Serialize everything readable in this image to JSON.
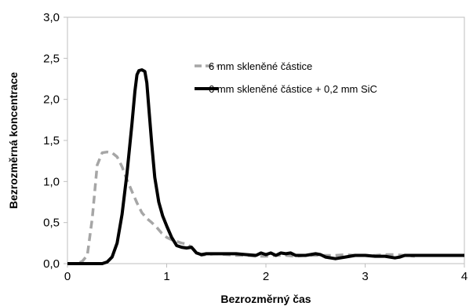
{
  "chart_data": {
    "type": "line",
    "xlabel": "Bezrozměrný čas",
    "ylabel": "Bezrozměrná koncentrace",
    "xlim": [
      0,
      4
    ],
    "ylim": [
      0,
      3
    ],
    "x_ticks": [
      0,
      1,
      2,
      3,
      4
    ],
    "x_tick_labels": [
      "0",
      "1",
      "2",
      "3",
      "4"
    ],
    "y_ticks": [
      0,
      0.5,
      1,
      1.5,
      2,
      2.5,
      3
    ],
    "y_tick_labels": [
      "0,0",
      "0,5",
      "1,0",
      "1,5",
      "2,0",
      "2,5",
      "3,0"
    ],
    "grid": false,
    "legend_position": "top-right",
    "series": [
      {
        "name": "6 mm skleněné částice",
        "color": "#a6a6a6",
        "dash": "dashed",
        "points": [
          [
            0.0,
            0.0
          ],
          [
            0.1,
            0.0
          ],
          [
            0.15,
            0.03
          ],
          [
            0.2,
            0.1
          ],
          [
            0.25,
            0.55
          ],
          [
            0.3,
            1.2
          ],
          [
            0.35,
            1.35
          ],
          [
            0.4,
            1.36
          ],
          [
            0.45,
            1.35
          ],
          [
            0.5,
            1.3
          ],
          [
            0.55,
            1.18
          ],
          [
            0.6,
            1.02
          ],
          [
            0.65,
            0.88
          ],
          [
            0.7,
            0.74
          ],
          [
            0.75,
            0.62
          ],
          [
            0.8,
            0.55
          ],
          [
            0.85,
            0.5
          ],
          [
            0.9,
            0.44
          ],
          [
            0.95,
            0.37
          ],
          [
            1.0,
            0.32
          ],
          [
            1.05,
            0.29
          ],
          [
            1.1,
            0.27
          ],
          [
            1.15,
            0.25
          ],
          [
            1.2,
            0.24
          ],
          [
            1.25,
            0.2
          ],
          [
            1.3,
            0.14
          ],
          [
            1.35,
            0.1
          ],
          [
            1.4,
            0.11
          ],
          [
            1.5,
            0.12
          ],
          [
            1.6,
            0.11
          ],
          [
            1.7,
            0.1
          ],
          [
            1.8,
            0.1
          ],
          [
            1.9,
            0.09
          ],
          [
            2.0,
            0.09
          ],
          [
            2.1,
            0.1
          ],
          [
            2.2,
            0.1
          ],
          [
            2.3,
            0.09
          ],
          [
            2.4,
            0.1
          ],
          [
            2.5,
            0.1
          ],
          [
            2.6,
            0.1
          ],
          [
            2.7,
            0.1
          ],
          [
            2.8,
            0.11
          ],
          [
            2.9,
            0.1
          ],
          [
            3.0,
            0.1
          ],
          [
            3.1,
            0.1
          ],
          [
            3.2,
            0.11
          ],
          [
            3.3,
            0.11
          ],
          [
            3.4,
            0.1
          ],
          [
            3.5,
            0.09
          ]
        ]
      },
      {
        "name": "6 mm skleněné částice + 0,2 mm SiC",
        "color": "#000000",
        "dash": "solid",
        "points": [
          [
            0.0,
            0.0
          ],
          [
            0.2,
            0.0
          ],
          [
            0.35,
            0.0
          ],
          [
            0.4,
            0.02
          ],
          [
            0.45,
            0.08
          ],
          [
            0.5,
            0.25
          ],
          [
            0.55,
            0.6
          ],
          [
            0.6,
            1.1
          ],
          [
            0.65,
            1.7
          ],
          [
            0.68,
            2.1
          ],
          [
            0.7,
            2.3
          ],
          [
            0.72,
            2.35
          ],
          [
            0.75,
            2.36
          ],
          [
            0.78,
            2.34
          ],
          [
            0.8,
            2.2
          ],
          [
            0.82,
            1.9
          ],
          [
            0.85,
            1.45
          ],
          [
            0.88,
            1.05
          ],
          [
            0.92,
            0.75
          ],
          [
            0.96,
            0.58
          ],
          [
            1.0,
            0.46
          ],
          [
            1.05,
            0.32
          ],
          [
            1.1,
            0.22
          ],
          [
            1.15,
            0.2
          ],
          [
            1.2,
            0.19
          ],
          [
            1.25,
            0.2
          ],
          [
            1.3,
            0.13
          ],
          [
            1.35,
            0.11
          ],
          [
            1.4,
            0.12
          ],
          [
            1.5,
            0.12
          ],
          [
            1.6,
            0.12
          ],
          [
            1.7,
            0.12
          ],
          [
            1.8,
            0.11
          ],
          [
            1.9,
            0.1
          ],
          [
            1.95,
            0.13
          ],
          [
            2.0,
            0.11
          ],
          [
            2.05,
            0.13
          ],
          [
            2.1,
            0.1
          ],
          [
            2.15,
            0.13
          ],
          [
            2.2,
            0.12
          ],
          [
            2.25,
            0.13
          ],
          [
            2.3,
            0.1
          ],
          [
            2.4,
            0.1
          ],
          [
            2.5,
            0.12
          ],
          [
            2.55,
            0.11
          ],
          [
            2.6,
            0.08
          ],
          [
            2.7,
            0.06
          ],
          [
            2.8,
            0.08
          ],
          [
            2.9,
            0.1
          ],
          [
            3.0,
            0.1
          ],
          [
            3.1,
            0.09
          ],
          [
            3.2,
            0.09
          ],
          [
            3.3,
            0.07
          ],
          [
            3.35,
            0.08
          ],
          [
            3.4,
            0.1
          ],
          [
            3.6,
            0.1
          ],
          [
            3.8,
            0.1
          ],
          [
            4.0,
            0.1
          ]
        ]
      }
    ]
  }
}
